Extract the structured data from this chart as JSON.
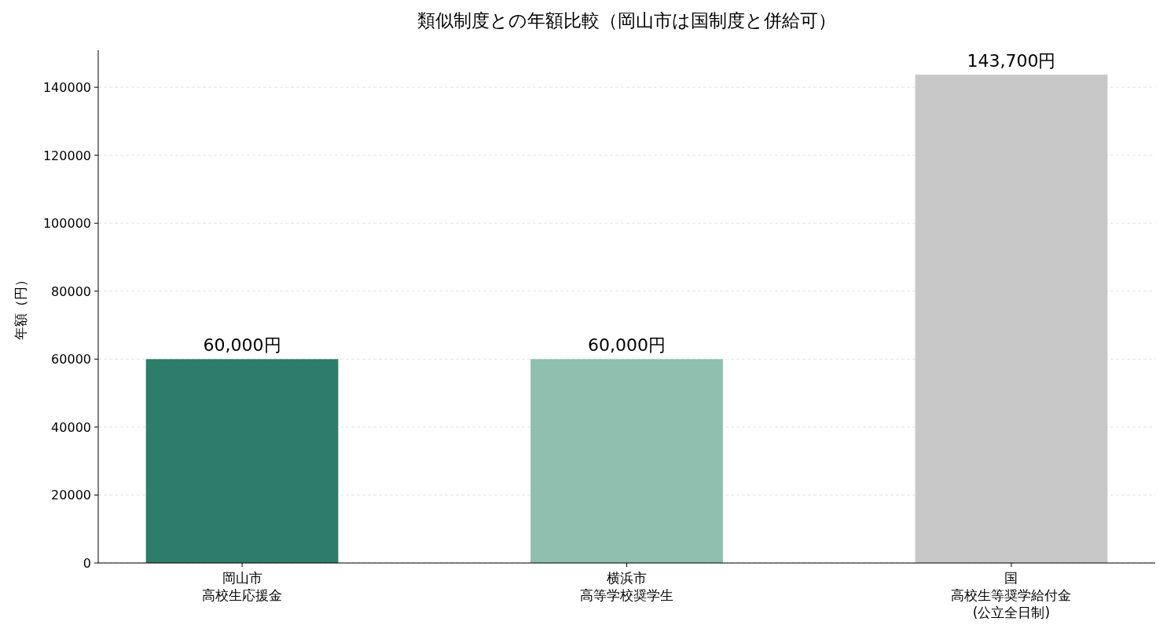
{
  "chart_data": {
    "type": "bar",
    "title": "類似制度との年額比較（岡山市は国制度と併給可）",
    "ylabel": "年額（円）",
    "categories": [
      [
        "岡山市",
        "高校生応援金"
      ],
      [
        "横浜市",
        "高等学校奨学生"
      ],
      [
        "国",
        "高校生等奨学給付金",
        "(公立全日制)"
      ]
    ],
    "values": [
      60000,
      60000,
      143700
    ],
    "colors": [
      "#2e7d6b",
      "#8fbfae",
      "#c8c8c8"
    ],
    "value_labels": [
      "60,000円",
      "60,000円",
      "143,700円"
    ],
    "ylim": [
      0,
      150900
    ],
    "yticks": [
      0,
      20000,
      40000,
      60000,
      80000,
      100000,
      120000,
      140000
    ],
    "grid": "y",
    "legend": false
  }
}
